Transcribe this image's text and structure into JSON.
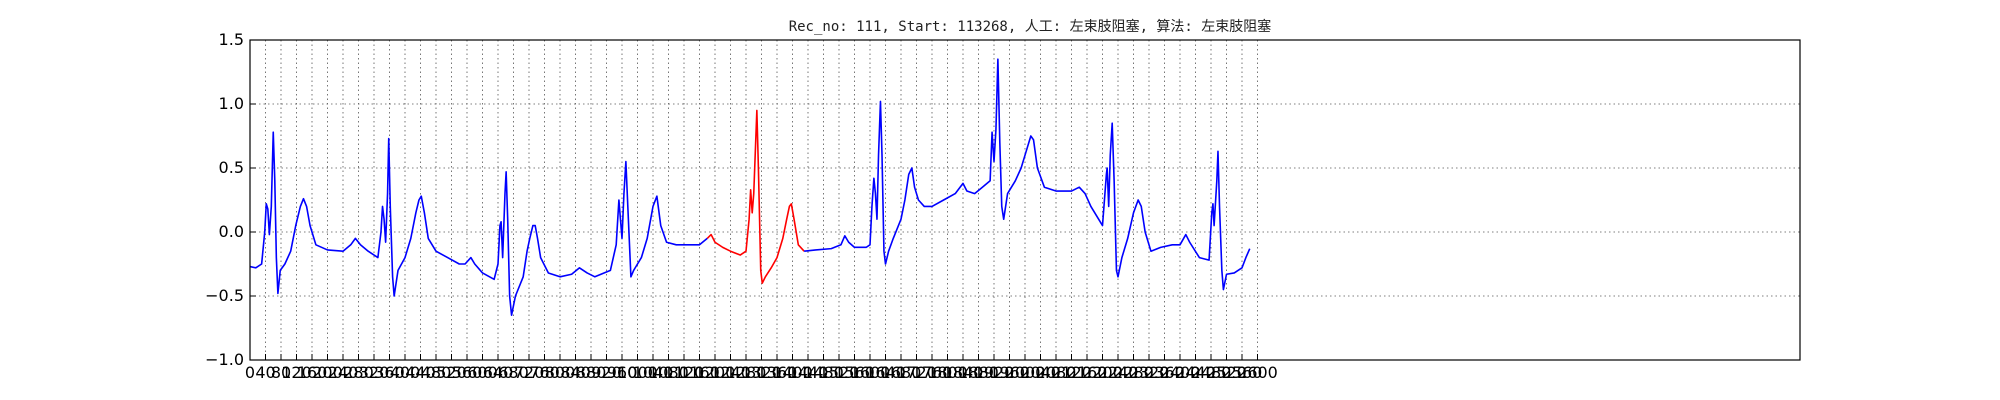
{
  "chart_data": {
    "type": "line",
    "title": "Rec_no: 111, Start: 113268, 人工: 左束肢阻塞, 算法: 左束肢阻塞",
    "xlabel": "",
    "ylabel": "",
    "xlim": [
      0,
      4000
    ],
    "ylim": [
      -1.0,
      1.5
    ],
    "grid": true,
    "yticks": [
      -1.0,
      -0.5,
      0.0,
      0.5,
      1.0,
      1.5
    ],
    "ytick_labels": [
      "−1.0",
      "−0.5",
      "0.0",
      "0.5",
      "1.0",
      "1.5"
    ],
    "xticks": [
      0,
      40,
      80,
      120,
      160,
      200,
      240,
      280,
      320,
      360,
      400,
      440,
      480,
      520,
      560,
      600,
      640,
      680,
      720,
      760,
      800,
      840,
      880,
      920,
      960,
      1000,
      1040,
      1080,
      1120,
      1160,
      1200,
      1240,
      1280,
      1320,
      1360,
      1400,
      1440,
      1480,
      1520,
      1560,
      1600,
      1640,
      1680,
      1720,
      1760,
      1800,
      1840,
      1880,
      1920,
      1960,
      2000,
      2040,
      2080,
      2120,
      2160,
      2200,
      2240,
      2280,
      2320,
      2360,
      2400,
      2440,
      2480,
      2520,
      2560,
      2600
    ],
    "xtick_labels": [
      "0",
      "40",
      "80",
      "120",
      "160",
      "200",
      "240",
      "280",
      "320",
      "360",
      "400",
      "440",
      "480",
      "520",
      "560",
      "600",
      "640",
      "680",
      "720",
      "760",
      "800",
      "840",
      "880",
      "920",
      "960",
      "1000",
      "1040",
      "1080",
      "1120",
      "1160",
      "1200",
      "1240",
      "1280",
      "1320",
      "1360",
      "1400",
      "1440",
      "1480",
      "1520",
      "1560",
      "1600",
      "1640",
      "1680",
      "1720",
      "1760",
      "1800",
      "1840",
      "1880",
      "1920",
      "1960",
      "2000",
      "2040",
      "2080",
      "2120",
      "2160",
      "2200",
      "2240",
      "2280",
      "2320",
      "2360",
      "2400",
      "2440",
      "2480",
      "2520",
      "2560",
      "2600"
    ],
    "series": [
      {
        "color": "#0000ff",
        "points": [
          [
            0,
            -0.27
          ],
          [
            15,
            -0.28
          ],
          [
            30,
            -0.25
          ],
          [
            38,
            0.0
          ],
          [
            42,
            0.22
          ],
          [
            46,
            0.18
          ],
          [
            50,
            -0.02
          ],
          [
            55,
            0.2
          ],
          [
            60,
            0.78
          ],
          [
            64,
            0.4
          ],
          [
            68,
            -0.2
          ],
          [
            72,
            -0.48
          ],
          [
            78,
            -0.3
          ],
          [
            90,
            -0.25
          ],
          [
            105,
            -0.15
          ],
          [
            118,
            0.05
          ],
          [
            130,
            0.2
          ],
          [
            138,
            0.26
          ],
          [
            146,
            0.2
          ],
          [
            155,
            0.05
          ],
          [
            170,
            -0.1
          ],
          [
            200,
            -0.14
          ],
          [
            240,
            -0.15
          ],
          [
            260,
            -0.1
          ],
          [
            272,
            -0.05
          ],
          [
            285,
            -0.1
          ],
          [
            305,
            -0.15
          ],
          [
            330,
            -0.2
          ],
          [
            338,
            0.0
          ],
          [
            342,
            0.2
          ],
          [
            346,
            0.1
          ],
          [
            350,
            -0.08
          ],
          [
            355,
            0.3
          ],
          [
            358,
            0.73
          ],
          [
            362,
            0.2
          ],
          [
            368,
            -0.35
          ],
          [
            372,
            -0.5
          ],
          [
            382,
            -0.3
          ],
          [
            400,
            -0.2
          ],
          [
            415,
            -0.05
          ],
          [
            428,
            0.15
          ],
          [
            436,
            0.25
          ],
          [
            442,
            0.28
          ],
          [
            450,
            0.15
          ],
          [
            460,
            -0.05
          ],
          [
            480,
            -0.15
          ],
          [
            510,
            -0.2
          ],
          [
            540,
            -0.25
          ],
          [
            555,
            -0.25
          ],
          [
            570,
            -0.2
          ],
          [
            580,
            -0.25
          ],
          [
            600,
            -0.32
          ],
          [
            630,
            -0.37
          ],
          [
            640,
            -0.25
          ],
          [
            645,
            0.05
          ],
          [
            648,
            0.08
          ],
          [
            652,
            -0.2
          ],
          [
            658,
            0.3
          ],
          [
            661,
            0.47
          ],
          [
            665,
            0.1
          ],
          [
            670,
            -0.5
          ],
          [
            675,
            -0.65
          ],
          [
            685,
            -0.5
          ],
          [
            705,
            -0.35
          ],
          [
            715,
            -0.15
          ],
          [
            722,
            -0.05
          ],
          [
            730,
            0.05
          ],
          [
            736,
            0.05
          ],
          [
            742,
            -0.05
          ],
          [
            750,
            -0.2
          ],
          [
            770,
            -0.32
          ],
          [
            800,
            -0.35
          ],
          [
            830,
            -0.33
          ],
          [
            850,
            -0.28
          ],
          [
            870,
            -0.32
          ],
          [
            890,
            -0.35
          ],
          [
            930,
            -0.3
          ],
          [
            945,
            -0.1
          ],
          [
            952,
            0.25
          ],
          [
            956,
            0.1
          ],
          [
            960,
            -0.05
          ],
          [
            965,
            0.3
          ],
          [
            970,
            0.55
          ],
          [
            975,
            0.2
          ],
          [
            983,
            -0.35
          ],
          [
            990,
            -0.3
          ],
          [
            1010,
            -0.2
          ],
          [
            1025,
            -0.05
          ],
          [
            1040,
            0.2
          ],
          [
            1050,
            0.28
          ],
          [
            1060,
            0.05
          ],
          [
            1075,
            -0.08
          ],
          [
            1100,
            -0.1
          ],
          [
            1130,
            -0.1
          ],
          [
            1160,
            -0.1
          ],
          [
            1180,
            -0.05
          ]
        ]
      },
      {
        "color": "#ff0000",
        "points": [
          [
            1180,
            -0.05
          ],
          [
            1190,
            -0.02
          ],
          [
            1200,
            -0.08
          ],
          [
            1220,
            -0.12
          ],
          [
            1240,
            -0.15
          ],
          [
            1265,
            -0.18
          ],
          [
            1280,
            -0.15
          ],
          [
            1288,
            0.1
          ],
          [
            1292,
            0.33
          ],
          [
            1296,
            0.15
          ],
          [
            1300,
            0.3
          ],
          [
            1308,
            0.95
          ],
          [
            1312,
            0.5
          ],
          [
            1318,
            -0.3
          ],
          [
            1322,
            -0.4
          ],
          [
            1330,
            -0.35
          ],
          [
            1345,
            -0.28
          ],
          [
            1360,
            -0.2
          ],
          [
            1375,
            -0.05
          ],
          [
            1385,
            0.1
          ],
          [
            1392,
            0.2
          ],
          [
            1397,
            0.22
          ],
          [
            1404,
            0.1
          ],
          [
            1415,
            -0.1
          ],
          [
            1430,
            -0.15
          ]
        ]
      },
      {
        "color": "#0000ff",
        "points": [
          [
            1430,
            -0.15
          ],
          [
            1460,
            -0.14
          ],
          [
            1500,
            -0.13
          ],
          [
            1525,
            -0.1
          ],
          [
            1535,
            -0.03
          ],
          [
            1545,
            -0.08
          ],
          [
            1560,
            -0.12
          ],
          [
            1590,
            -0.12
          ],
          [
            1600,
            -0.1
          ],
          [
            1605,
            0.2
          ],
          [
            1610,
            0.42
          ],
          [
            1614,
            0.3
          ],
          [
            1618,
            0.1
          ],
          [
            1622,
            0.6
          ],
          [
            1627,
            1.02
          ],
          [
            1631,
            0.6
          ],
          [
            1636,
            -0.15
          ],
          [
            1640,
            -0.25
          ],
          [
            1648,
            -0.15
          ],
          [
            1660,
            -0.05
          ],
          [
            1680,
            0.1
          ],
          [
            1690,
            0.25
          ],
          [
            1700,
            0.45
          ],
          [
            1708,
            0.5
          ],
          [
            1715,
            0.35
          ],
          [
            1725,
            0.25
          ],
          [
            1740,
            0.2
          ],
          [
            1760,
            0.2
          ],
          [
            1790,
            0.25
          ],
          [
            1820,
            0.3
          ],
          [
            1840,
            0.38
          ],
          [
            1850,
            0.32
          ],
          [
            1870,
            0.3
          ],
          [
            1890,
            0.35
          ],
          [
            1910,
            0.4
          ],
          [
            1915,
            0.78
          ],
          [
            1920,
            0.55
          ],
          [
            1925,
            0.8
          ],
          [
            1930,
            1.35
          ],
          [
            1935,
            0.7
          ],
          [
            1940,
            0.2
          ],
          [
            1945,
            0.1
          ],
          [
            1955,
            0.3
          ],
          [
            1975,
            0.4
          ],
          [
            1990,
            0.5
          ],
          [
            2005,
            0.65
          ],
          [
            2015,
            0.75
          ],
          [
            2022,
            0.72
          ],
          [
            2032,
            0.5
          ],
          [
            2050,
            0.35
          ],
          [
            2080,
            0.32
          ],
          [
            2120,
            0.32
          ],
          [
            2140,
            0.35
          ],
          [
            2155,
            0.3
          ],
          [
            2170,
            0.2
          ],
          [
            2190,
            0.1
          ],
          [
            2200,
            0.05
          ],
          [
            2210,
            0.45
          ],
          [
            2212,
            0.5
          ],
          [
            2216,
            0.2
          ],
          [
            2220,
            0.6
          ],
          [
            2225,
            0.85
          ],
          [
            2230,
            0.4
          ],
          [
            2236,
            -0.3
          ],
          [
            2240,
            -0.35
          ],
          [
            2250,
            -0.2
          ],
          [
            2265,
            -0.05
          ],
          [
            2280,
            0.15
          ],
          [
            2292,
            0.25
          ],
          [
            2300,
            0.2
          ],
          [
            2310,
            0.0
          ],
          [
            2325,
            -0.15
          ],
          [
            2350,
            -0.12
          ],
          [
            2380,
            -0.1
          ],
          [
            2400,
            -0.1
          ],
          [
            2415,
            -0.02
          ],
          [
            2425,
            -0.08
          ],
          [
            2450,
            -0.2
          ],
          [
            2475,
            -0.22
          ],
          [
            2482,
            0.15
          ],
          [
            2485,
            0.22
          ],
          [
            2488,
            0.05
          ],
          [
            2495,
            0.4
          ],
          [
            2498,
            0.63
          ],
          [
            2502,
            0.2
          ],
          [
            2508,
            -0.3
          ],
          [
            2512,
            -0.45
          ],
          [
            2520,
            -0.33
          ],
          [
            2540,
            -0.32
          ],
          [
            2560,
            -0.28
          ],
          [
            2570,
            -0.2
          ],
          [
            2580,
            -0.13
          ]
        ]
      }
    ]
  }
}
